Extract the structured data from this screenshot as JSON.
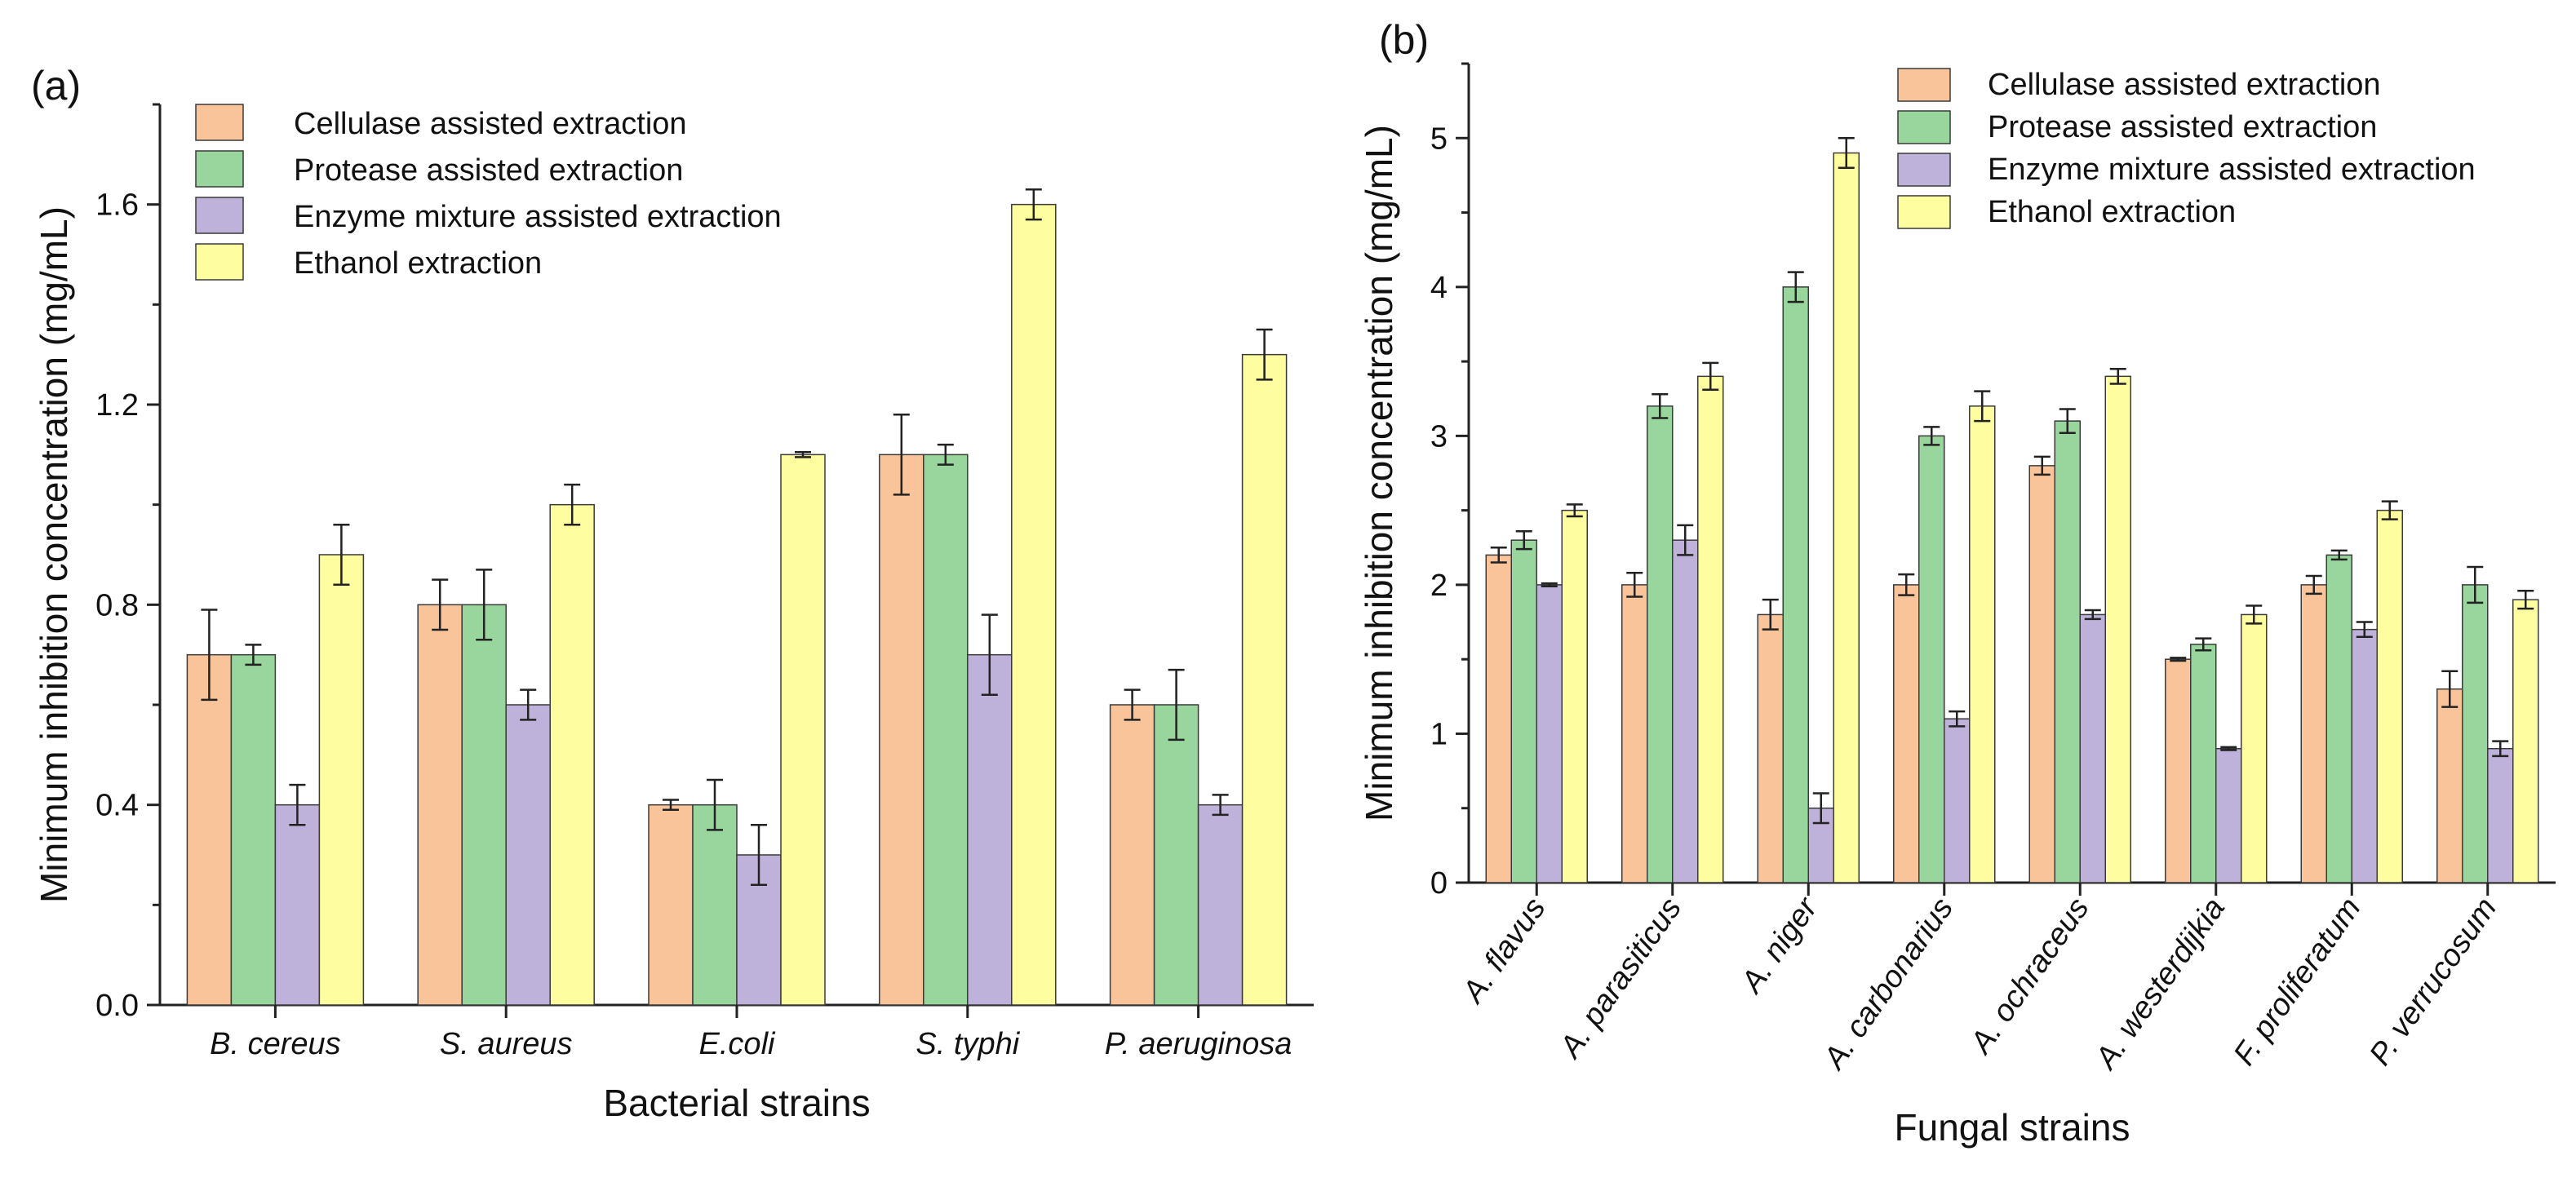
{
  "chart_data": [
    {
      "type": "bar",
      "panel_label": "(a)",
      "title": "",
      "xlabel": "Bacterial strains",
      "ylabel": "Minimum inhibition concentration (mg/mL)",
      "ylim": [
        0,
        1.8
      ],
      "yticks": [
        "0.0",
        "0.4",
        "0.8",
        "1.2",
        "1.6"
      ],
      "ytick_values": [
        0,
        0.4,
        0.8,
        1.2,
        1.6
      ],
      "grid": false,
      "legend_position": "top-left",
      "categories": [
        "B. cereus",
        "S. aureus",
        "E.coli",
        "S. typhi",
        "P. aeruginosa"
      ],
      "series": [
        {
          "name": "Cellulase assisted extraction",
          "color": "#F9C49A",
          "values": [
            0.7,
            0.8,
            0.4,
            1.1,
            0.6
          ],
          "errors": [
            0.09,
            0.05,
            0.01,
            0.08,
            0.03
          ]
        },
        {
          "name": "Protease assisted extraction",
          "color": "#99D69D",
          "values": [
            0.7,
            0.8,
            0.4,
            1.1,
            0.6
          ],
          "errors": [
            0.02,
            0.07,
            0.05,
            0.02,
            0.07
          ]
        },
        {
          "name": "Enzyme mixture assisted extraction",
          "color": "#BFB2DA",
          "values": [
            0.4,
            0.6,
            0.3,
            0.7,
            0.4
          ],
          "errors": [
            0.04,
            0.03,
            0.06,
            0.08,
            0.02
          ]
        },
        {
          "name": "Ethanol extraction",
          "color": "#FEFEA1",
          "values": [
            0.9,
            1.0,
            1.1,
            1.6,
            1.3
          ],
          "errors": [
            0.06,
            0.04,
            0.005,
            0.03,
            0.05
          ]
        }
      ]
    },
    {
      "type": "bar",
      "panel_label": "(b)",
      "title": "",
      "xlabel": "Fungal strains",
      "ylabel": "Minimum inhibition concentration (mg/mL)",
      "ylim": [
        0,
        5.5
      ],
      "yticks": [
        "0",
        "1",
        "2",
        "3",
        "4",
        "5"
      ],
      "ytick_values": [
        0,
        1,
        2,
        3,
        4,
        5
      ],
      "grid": false,
      "legend_position": "top-right",
      "categories": [
        "A. flavus",
        "A. parasiticus",
        "A. niger",
        "A. carbonarius",
        "A. ochraceus",
        "A. westerdijkia",
        "F. proliferatum",
        "P. verrucosum"
      ],
      "series": [
        {
          "name": "Cellulase assisted extraction",
          "color": "#F9C49A",
          "values": [
            2.2,
            2.0,
            1.8,
            2.0,
            2.8,
            1.5,
            2.0,
            1.3
          ],
          "errors": [
            0.05,
            0.08,
            0.1,
            0.07,
            0.06,
            0.01,
            0.06,
            0.12
          ]
        },
        {
          "name": "Protease assisted extraction",
          "color": "#99D69D",
          "values": [
            2.3,
            3.2,
            4.0,
            3.0,
            3.1,
            1.6,
            2.2,
            2.0
          ],
          "errors": [
            0.06,
            0.08,
            0.1,
            0.06,
            0.08,
            0.04,
            0.03,
            0.12
          ]
        },
        {
          "name": "Enzyme mixture assisted extraction",
          "color": "#BFB2DA",
          "values": [
            2.0,
            2.3,
            0.5,
            1.1,
            1.8,
            0.9,
            1.7,
            0.9
          ],
          "errors": [
            0.01,
            0.1,
            0.1,
            0.05,
            0.03,
            0.01,
            0.05,
            0.05
          ]
        },
        {
          "name": "Ethanol extraction",
          "color": "#FEFEA1",
          "values": [
            2.5,
            3.4,
            4.9,
            3.2,
            3.4,
            1.8,
            2.5,
            1.9
          ],
          "errors": [
            0.04,
            0.09,
            0.1,
            0.1,
            0.05,
            0.06,
            0.06,
            0.06
          ]
        }
      ]
    }
  ]
}
